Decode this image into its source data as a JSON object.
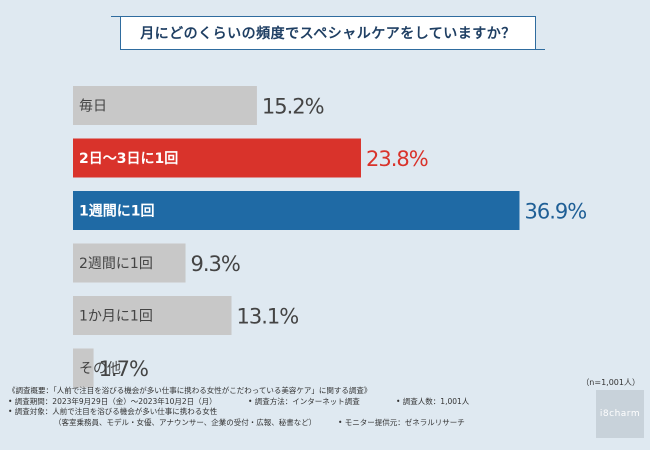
{
  "title": "月にどのくらいの頻度でスペシャルケアをしていますか？",
  "chart_data": {
    "type": "bar",
    "orientation": "horizontal",
    "title": "月にどのくらいの頻度でスペシャルケアをしていますか？",
    "categories": [
      "毎日",
      "2日〜3日に1回",
      "1週間に1回",
      "2週間に1回",
      "1か月に1回",
      "その他"
    ],
    "values": [
      15.2,
      23.8,
      36.9,
      9.3,
      13.1,
      1.7
    ],
    "value_labels": [
      "15.2%",
      "23.8%",
      "36.9%",
      "9.3%",
      "13.1%",
      "1.7%"
    ],
    "unit": "%",
    "xlim": [
      0,
      40
    ],
    "colors": [
      "#c8c8c8",
      "#d9332b",
      "#1f6aa5",
      "#c8c8c8",
      "#c8c8c8",
      "#c8c8c8"
    ],
    "label_colors": [
      "#444444",
      "#d9332b",
      "#1f5f96",
      "#444444",
      "#444444",
      "#444444"
    ],
    "highlight_text_color": "#ffffff",
    "base_text_color": "#444444"
  },
  "note": "（n=1,001人）",
  "footer": {
    "survey_name": "《調査概要：「人前で注目を浴びる機会が多い仕事に携わる女性がこだわっている美容ケア」に関する調査》",
    "period": "• 調査期間：2023年9月29日（金）〜2023年10月2日（月）",
    "method": "• 調査方法：インターネット調査",
    "count": "• 調査人数：1,001人",
    "target": "• 調査対象：人前で注目を浴びる機会が多い仕事に携わる女性",
    "target_detail": "（客室乗務員、モデル・女優、アナウンサー、企業の受付・広報、秘書など）",
    "provider": "• モニター提供元：ゼネラルリサーチ"
  },
  "logo_text": "i8charm"
}
